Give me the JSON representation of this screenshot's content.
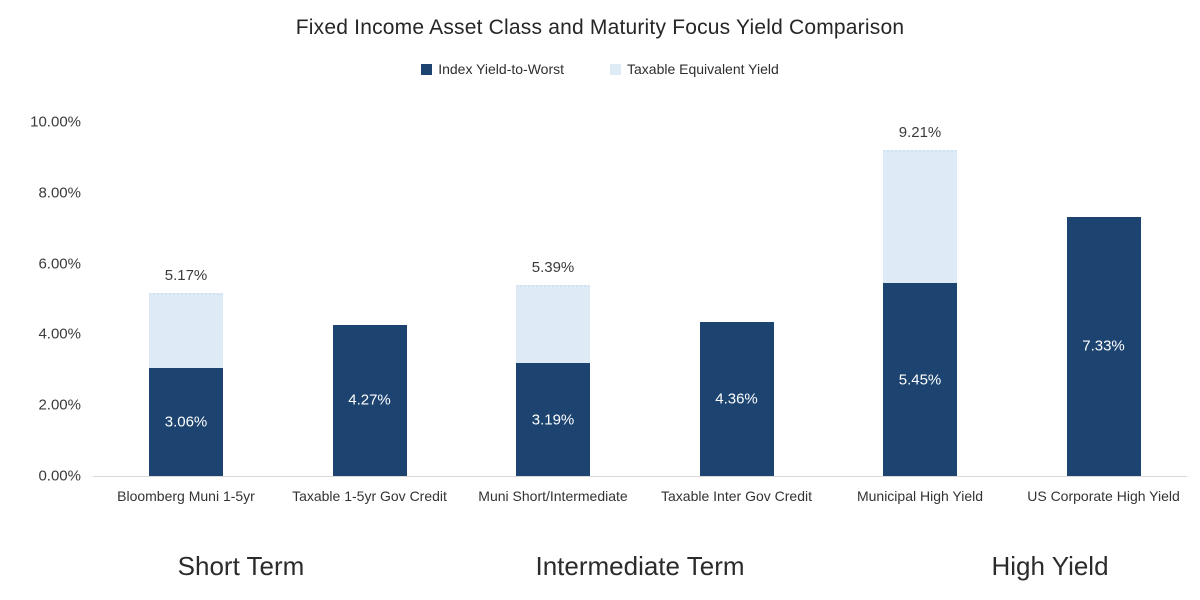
{
  "chart_data": {
    "type": "bar",
    "stacked": true,
    "title": "Fixed Income Asset Class and Maturity Focus Yield Comparison",
    "legend_position": "top",
    "grid": false,
    "categories": [
      "Bloomberg Muni 1-5yr",
      "Taxable 1-5yr Gov Credit",
      "Muni Short/Intermediate",
      "Taxable Inter Gov Credit",
      "Municipal High Yield",
      "US Corporate High Yield"
    ],
    "series": [
      {
        "name": "Index Yield-to-Worst",
        "color": "#1d4470",
        "values": [
          3.06,
          4.27,
          3.19,
          4.36,
          5.45,
          7.33
        ]
      },
      {
        "name": "Taxable Equivalent Yield",
        "color": "#deebf7",
        "totals": [
          5.17,
          null,
          5.39,
          null,
          9.21,
          null
        ]
      }
    ],
    "inside_labels": [
      "3.06%",
      "4.27%",
      "3.19%",
      "4.36%",
      "5.45%",
      "7.33%"
    ],
    "above_labels": [
      "5.17%",
      null,
      "5.39%",
      null,
      "9.21%",
      null
    ],
    "groups": [
      {
        "label": "Short Term",
        "span": [
          0,
          1
        ]
      },
      {
        "label": "Intermediate Term",
        "span": [
          2,
          3
        ]
      },
      {
        "label": "High Yield",
        "span": [
          4,
          5
        ]
      }
    ],
    "yaxis": {
      "min": 0,
      "max": 10,
      "step": 2,
      "tick_labels": [
        "0.00%",
        "2.00%",
        "4.00%",
        "6.00%",
        "8.00%",
        "10.00%"
      ]
    }
  },
  "colors": {
    "index_yield": "#1d4470",
    "taxable_equivalent": "#deebf7",
    "axis_line": "#d9d9d9",
    "text_dark": "#2b2b2b",
    "value_text_light": "#ffffff"
  }
}
